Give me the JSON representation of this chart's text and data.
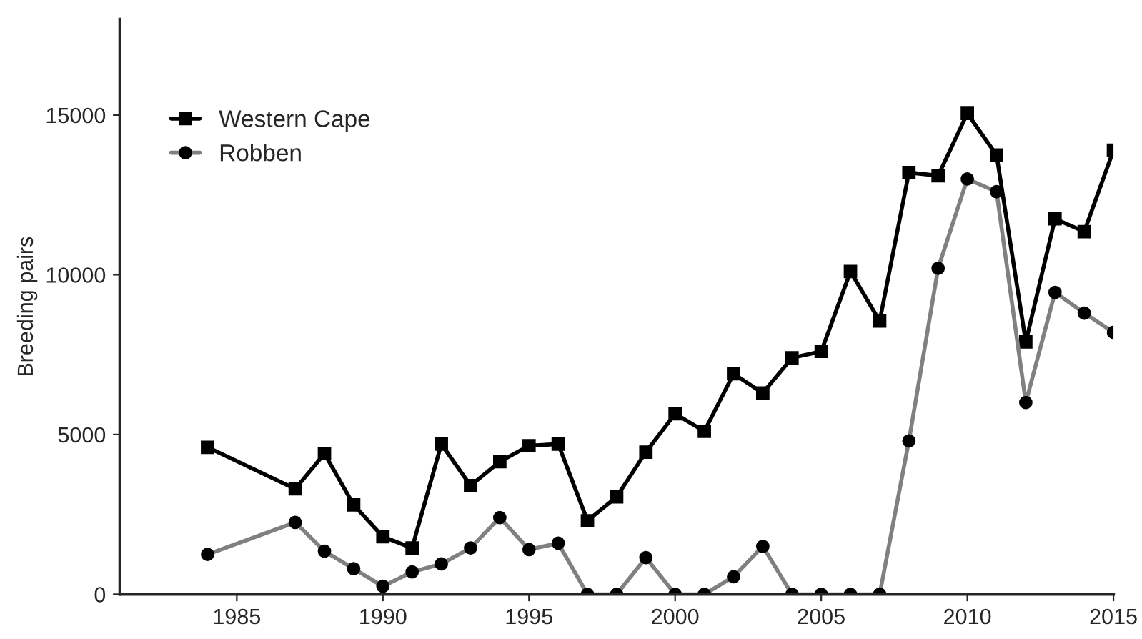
{
  "chart_data": {
    "type": "line",
    "ylabel": "Breeding pairs",
    "x": [
      1984,
      1987,
      1988,
      1989,
      1990,
      1991,
      1992,
      1993,
      1994,
      1995,
      1996,
      1997,
      1998,
      1999,
      2000,
      2001,
      2002,
      2003,
      2004,
      2005,
      2006,
      2007,
      2008,
      2009,
      2010,
      2011,
      2012,
      2013,
      2014,
      2015
    ],
    "series": [
      {
        "name": "Western Cape",
        "color": "#000000",
        "marker": "square",
        "values": [
          4600,
          3300,
          4400,
          2800,
          1800,
          1450,
          4700,
          3400,
          4150,
          4650,
          4700,
          2300,
          3050,
          4450,
          5650,
          5100,
          6900,
          6300,
          7400,
          7600,
          10100,
          8550,
          13200,
          13100,
          15050,
          13750,
          7900,
          11750,
          11350,
          13900
        ]
      },
      {
        "name": "Robben",
        "color": "#808080",
        "marker": "circle",
        "values": [
          1250,
          2250,
          1350,
          800,
          250,
          700,
          950,
          1450,
          2400,
          1400,
          1600,
          0,
          0,
          1150,
          0,
          0,
          550,
          1500,
          0,
          0,
          0,
          0,
          4800,
          10200,
          13000,
          12600,
          6000,
          9450,
          8800,
          8200
        ]
      }
    ],
    "xlim": [
      1981,
      2015
    ],
    "xticks": [
      1985,
      1990,
      1995,
      2000,
      2005,
      2010,
      2015
    ],
    "ylim": [
      0,
      18000
    ],
    "yticks": [
      0,
      5000,
      10000,
      15000
    ],
    "legend": "top left",
    "grid": false
  }
}
